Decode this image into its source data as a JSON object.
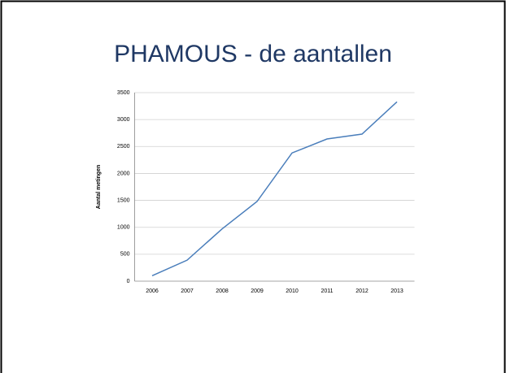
{
  "chart_data": {
    "type": "line",
    "title": "PHAMOUS - de aantallen",
    "y_label": "Aantal metingen",
    "categories": [
      "2006",
      "2007",
      "2008",
      "2009",
      "2010",
      "2011",
      "2012",
      "2013"
    ],
    "series": [
      {
        "name": "Aantal metingen",
        "color": "#4a7ebb",
        "values": [
          100,
          390,
          970,
          1480,
          2380,
          2640,
          2730,
          3330
        ]
      }
    ],
    "ylim": [
      0,
      3500
    ],
    "yticks": [
      0,
      500,
      1000,
      1500,
      2000,
      2500,
      3000,
      3500
    ],
    "grid": true
  }
}
